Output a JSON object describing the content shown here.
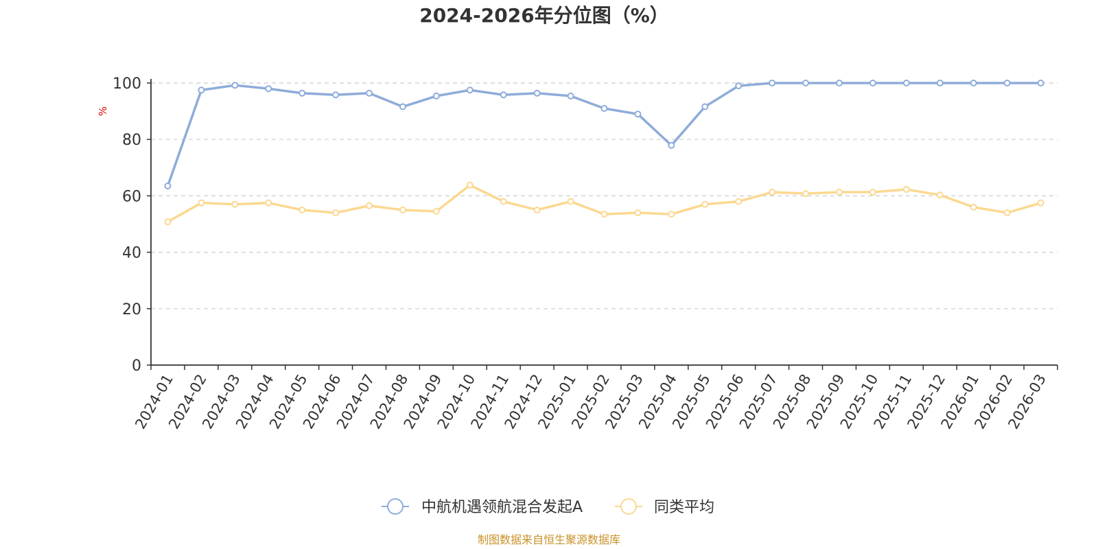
{
  "chart_data": {
    "type": "line",
    "title": "2024-2026年分位图（%）",
    "ylabel": "%",
    "xlabel": "",
    "ylim": [
      0,
      100
    ],
    "yticks": [
      0,
      20,
      40,
      60,
      80,
      100
    ],
    "grid": true,
    "legend_position": "bottom",
    "categories": [
      "2024-01",
      "2024-02",
      "2024-03",
      "2024-04",
      "2024-05",
      "2024-06",
      "2024-07",
      "2024-08",
      "2024-09",
      "2024-10",
      "2024-11",
      "2024-12",
      "2025-01",
      "2025-02",
      "2025-03",
      "2025-04",
      "2025-05",
      "2025-06",
      "2025-07",
      "2025-08",
      "2025-09",
      "2025-10",
      "2025-11",
      "2025-12",
      "2026-01",
      "2026-02",
      "2026-03"
    ],
    "series": [
      {
        "name": "中航机遇领航混合发起A",
        "color": "#8eacd9",
        "values": [
          63.5,
          97.5,
          99.2,
          98.0,
          96.4,
          95.8,
          96.4,
          91.6,
          95.4,
          97.5,
          95.8,
          96.4,
          95.4,
          91.0,
          89.0,
          77.9,
          91.6,
          99.0,
          100,
          100,
          100,
          100,
          100,
          100,
          100,
          100,
          100
        ]
      },
      {
        "name": "同类平均",
        "color": "#fbd890",
        "values": [
          50.8,
          57.5,
          57.0,
          57.5,
          55.0,
          54.0,
          56.5,
          55.0,
          54.5,
          63.8,
          58.0,
          55.0,
          58.0,
          53.5,
          54.0,
          53.5,
          57.0,
          58.0,
          61.3,
          60.8,
          61.3,
          61.3,
          62.3,
          60.3,
          56.0,
          54.0,
          57.5
        ]
      }
    ],
    "source": "制图数据来自恒生聚源数据库"
  }
}
